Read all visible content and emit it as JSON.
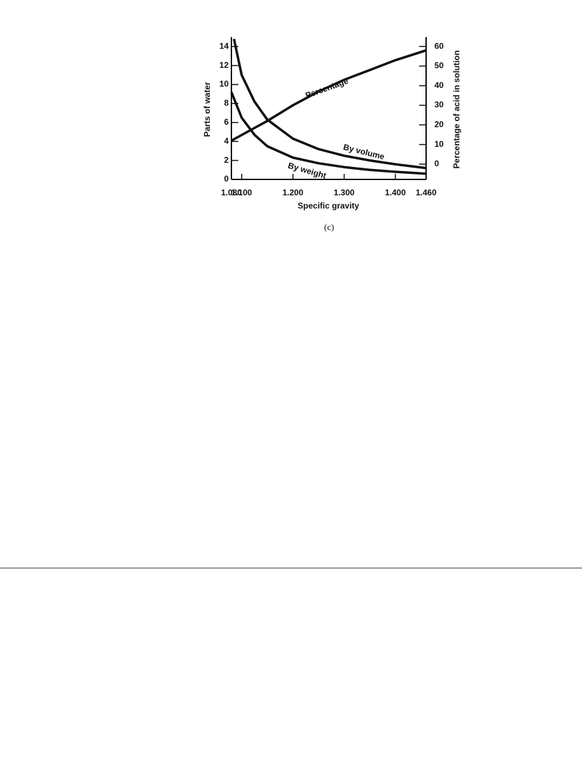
{
  "chart_data": {
    "type": "line",
    "xlabel": "Specific gravity",
    "ylabel": "Parts of water",
    "y2label": "Percentage of acid in solution",
    "xlim": [
      1.08,
      1.46
    ],
    "xticks": [
      {
        "value": 1.08,
        "label": "1.080"
      },
      {
        "value": 1.1,
        "label": "1.100"
      },
      {
        "value": 1.2,
        "label": "1.200"
      },
      {
        "value": 1.3,
        "label": "1.300"
      },
      {
        "value": 1.4,
        "label": "1.400"
      },
      {
        "value": 1.46,
        "label": "1.460"
      }
    ],
    "ylim": [
      0,
      15
    ],
    "yticks": [
      0,
      2,
      4,
      6,
      8,
      10,
      12,
      14
    ],
    "y2lim": [
      -7.8,
      64.8
    ],
    "y2ticks": [
      0,
      10,
      20,
      30,
      40,
      50,
      60
    ],
    "grid": false,
    "series": [
      {
        "name": "By volume",
        "color": "#111111",
        "x": [
          1.085,
          1.1,
          1.125,
          1.15,
          1.2,
          1.25,
          1.3,
          1.35,
          1.4,
          1.46
        ],
        "values": [
          14.8,
          11.0,
          8.2,
          6.3,
          4.3,
          3.2,
          2.5,
          2.0,
          1.6,
          1.2
        ]
      },
      {
        "name": "By weight",
        "color": "#111111",
        "x": [
          1.08,
          1.1,
          1.125,
          1.15,
          1.2,
          1.25,
          1.3,
          1.35,
          1.4,
          1.46
        ],
        "values": [
          9.2,
          6.5,
          4.7,
          3.5,
          2.3,
          1.7,
          1.3,
          1.0,
          0.8,
          0.6
        ]
      },
      {
        "name": "Percentage",
        "color": "#111111",
        "axis": "y2",
        "x": [
          1.08,
          1.15,
          1.2,
          1.25,
          1.3,
          1.35,
          1.4,
          1.46
        ],
        "values": [
          12,
          22,
          30,
          37,
          43,
          48,
          53,
          58
        ]
      }
    ]
  },
  "caption": "(c)"
}
